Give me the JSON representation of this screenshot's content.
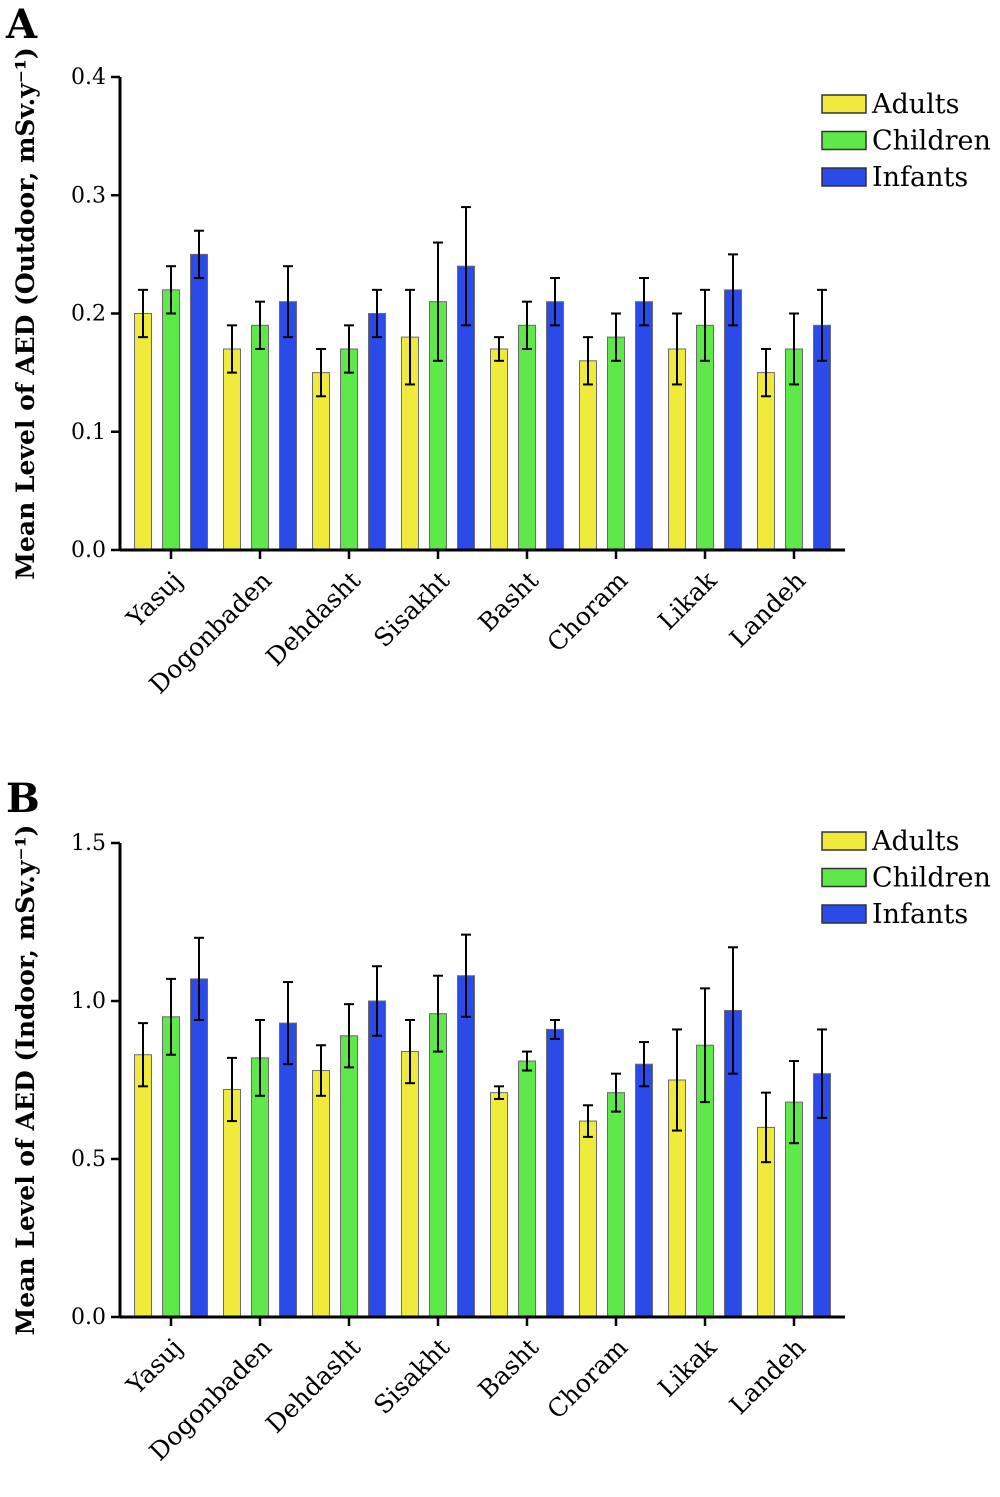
{
  "chart_data": [
    {
      "panel": "A",
      "type": "bar",
      "ylabel": "Mean Level of AED (Outdoor, mSv.y⁻¹)",
      "ylim": [
        0,
        0.4
      ],
      "yticks": [
        "0.0",
        "0.1",
        "0.2",
        "0.3",
        "0.4"
      ],
      "categories": [
        "Yasuj",
        "Dogonbaden",
        "Dehdasht",
        "Sisakht",
        "Basht",
        "Choram",
        "Likak",
        "Landeh"
      ],
      "legend_position": "top-right",
      "grid": false,
      "series": [
        {
          "name": "Adults",
          "color": "#f0ea3c",
          "values": [
            0.2,
            0.17,
            0.15,
            0.18,
            0.17,
            0.16,
            0.17,
            0.15
          ],
          "error": [
            0.02,
            0.02,
            0.02,
            0.04,
            0.01,
            0.02,
            0.03,
            0.02
          ]
        },
        {
          "name": "Children",
          "color": "#5ee84a",
          "values": [
            0.22,
            0.19,
            0.17,
            0.21,
            0.19,
            0.18,
            0.19,
            0.17
          ],
          "error": [
            0.02,
            0.02,
            0.02,
            0.05,
            0.02,
            0.02,
            0.03,
            0.03
          ]
        },
        {
          "name": "Infants",
          "color": "#2b4be8",
          "values": [
            0.25,
            0.21,
            0.2,
            0.24,
            0.21,
            0.21,
            0.22,
            0.19
          ],
          "error": [
            0.02,
            0.03,
            0.02,
            0.05,
            0.02,
            0.02,
            0.03,
            0.03
          ]
        }
      ]
    },
    {
      "panel": "B",
      "type": "bar",
      "ylabel": "Mean Level of AED (Indoor, mSv.y⁻¹)",
      "ylim": [
        0,
        1.5
      ],
      "yticks": [
        "0.0",
        "0.5",
        "1.0",
        "1.5"
      ],
      "categories": [
        "Yasuj",
        "Dogonbaden",
        "Dehdasht",
        "Sisakht",
        "Basht",
        "Choram",
        "Likak",
        "Landeh"
      ],
      "legend_position": "top-right",
      "grid": false,
      "series": [
        {
          "name": "Adults",
          "color": "#f0ea3c",
          "values": [
            0.83,
            0.72,
            0.78,
            0.84,
            0.71,
            0.62,
            0.75,
            0.6
          ],
          "error": [
            0.1,
            0.1,
            0.08,
            0.1,
            0.02,
            0.05,
            0.16,
            0.11
          ]
        },
        {
          "name": "Children",
          "color": "#5ee84a",
          "values": [
            0.95,
            0.82,
            0.89,
            0.96,
            0.81,
            0.71,
            0.86,
            0.68
          ],
          "error": [
            0.12,
            0.12,
            0.1,
            0.12,
            0.03,
            0.06,
            0.18,
            0.13
          ]
        },
        {
          "name": "Infants",
          "color": "#2b4be8",
          "values": [
            1.07,
            0.93,
            1.0,
            1.08,
            0.91,
            0.8,
            0.97,
            0.77
          ],
          "error": [
            0.13,
            0.13,
            0.11,
            0.13,
            0.03,
            0.07,
            0.2,
            0.14
          ]
        }
      ]
    }
  ]
}
